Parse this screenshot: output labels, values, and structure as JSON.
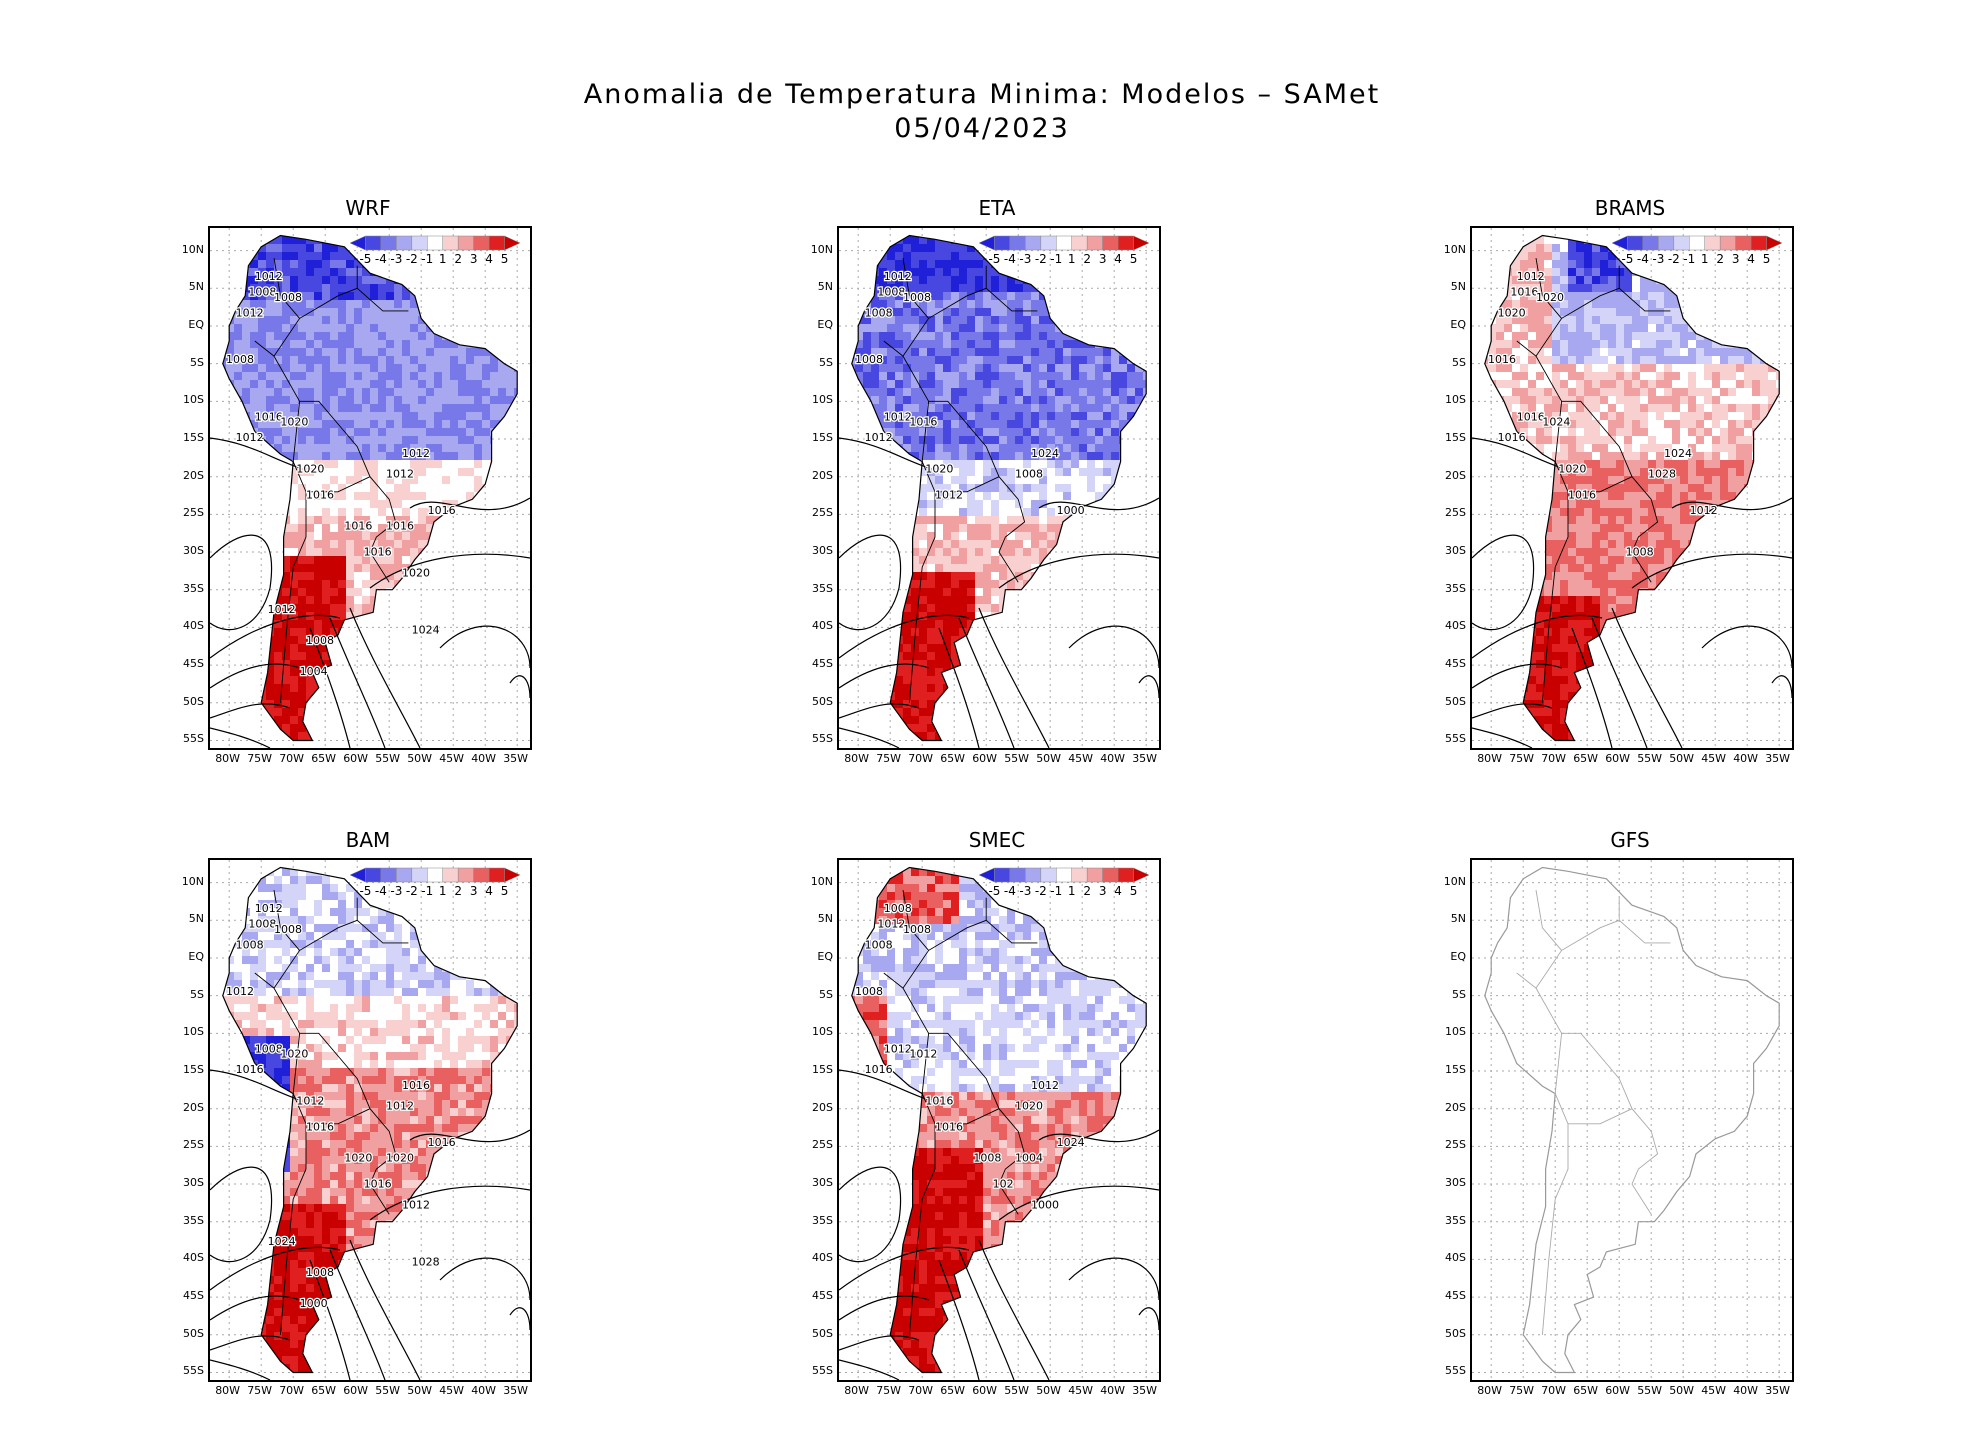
{
  "title": {
    "line1": "Anomalia de Temperatura Minima: Modelos – SAMet",
    "line2": "05/04/2023"
  },
  "axes": {
    "lat_ticks": [
      "10N",
      "5N",
      "EQ",
      "5S",
      "10S",
      "15S",
      "20S",
      "25S",
      "30S",
      "35S",
      "40S",
      "45S",
      "50S",
      "55S"
    ],
    "lon_ticks": [
      "80W",
      "75W",
      "70W",
      "65W",
      "60W",
      "55W",
      "50W",
      "45W",
      "40W",
      "35W"
    ]
  },
  "colorbar": {
    "labels": [
      "-5",
      "-4",
      "-3",
      "-2",
      "-1",
      "1",
      "2",
      "3",
      "4",
      "5"
    ],
    "colors": [
      "#2020d8",
      "#4848e0",
      "#7878e8",
      "#a8a8f0",
      "#d4d4f8",
      "#ffffff",
      "#f8d0d0",
      "#f0a0a0",
      "#e86060",
      "#e02020",
      "#c80000"
    ]
  },
  "panels": [
    {
      "name": "WRF",
      "has_data": true,
      "isobars": [
        "1012",
        "1008",
        "1008",
        "1012",
        "1008",
        "1016",
        "1012",
        "1020",
        "1020",
        "1016",
        "1012",
        "1012",
        "1016",
        "1016",
        "1016",
        "1016",
        "1020",
        "1012",
        "1024",
        "1008",
        "1004"
      ]
    },
    {
      "name": "ETA",
      "has_data": true,
      "isobars": [
        "1012",
        "1008",
        "1008",
        "1008",
        "1008",
        "1012",
        "1012",
        "1016",
        "1020",
        "1012",
        "1024",
        "1008",
        "1000"
      ]
    },
    {
      "name": "BRAMS",
      "has_data": true,
      "isobars": [
        "1012",
        "1016",
        "1020",
        "1020",
        "1016",
        "1016",
        "1016",
        "1024",
        "1020",
        "1016",
        "1024",
        "1028",
        "1012",
        "1008"
      ]
    },
    {
      "name": "BAM",
      "has_data": true,
      "isobars": [
        "1012",
        "1008",
        "1008",
        "1008",
        "1012",
        "1008",
        "1016",
        "1020",
        "1012",
        "1016",
        "1016",
        "1012",
        "1016",
        "1016",
        "1020",
        "1020",
        "1012",
        "1024",
        "1028",
        "1008",
        "1000"
      ]
    },
    {
      "name": "SMEC",
      "has_data": true,
      "isobars": [
        "1008",
        "1012",
        "1008",
        "1008",
        "1008",
        "1012",
        "1016",
        "1012",
        "1016",
        "1016",
        "1012",
        "1020",
        "1024",
        "102",
        "1008",
        "1004",
        "1000"
      ]
    },
    {
      "name": "GFS",
      "has_data": false,
      "isobars": []
    }
  ]
}
